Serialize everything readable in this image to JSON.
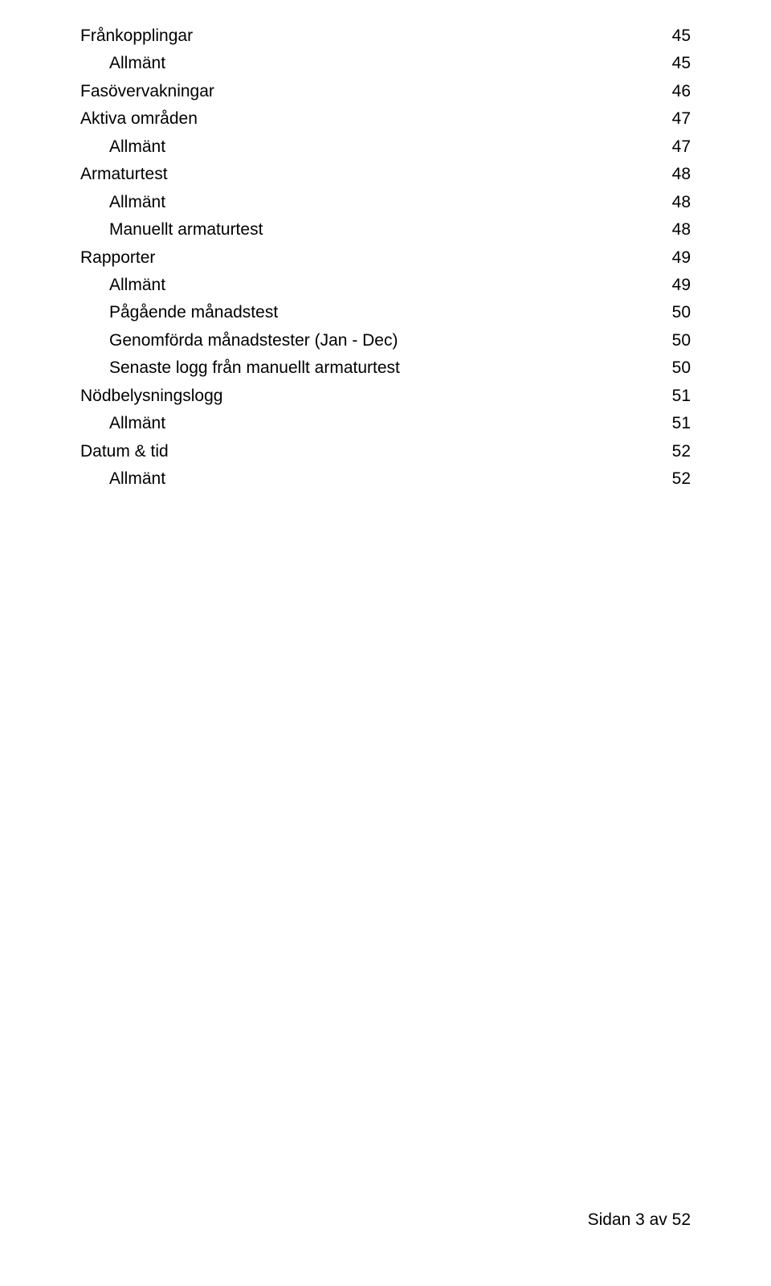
{
  "toc": [
    {
      "label": "Frånkopplingar",
      "page": "45",
      "indent": 0
    },
    {
      "label": "Allmänt",
      "page": "45",
      "indent": 1
    },
    {
      "label": "Fasövervakningar",
      "page": "46",
      "indent": 0
    },
    {
      "label": "Aktiva områden",
      "page": "47",
      "indent": 0
    },
    {
      "label": "Allmänt",
      "page": "47",
      "indent": 1
    },
    {
      "label": "Armaturtest",
      "page": "48",
      "indent": 0
    },
    {
      "label": "Allmänt",
      "page": "48",
      "indent": 1
    },
    {
      "label": "Manuellt armaturtest",
      "page": "48",
      "indent": 1
    },
    {
      "label": "Rapporter",
      "page": "49",
      "indent": 0
    },
    {
      "label": "Allmänt",
      "page": "49",
      "indent": 1
    },
    {
      "label": "Pågående månadstest",
      "page": "50",
      "indent": 1
    },
    {
      "label": "Genomförda månadstester (Jan - Dec)",
      "page": "50",
      "indent": 1
    },
    {
      "label": "Senaste logg från manuellt armaturtest",
      "page": "50",
      "indent": 1
    },
    {
      "label": "Nödbelysningslogg",
      "page": "51",
      "indent": 0
    },
    {
      "label": "Allmänt",
      "page": "51",
      "indent": 1
    },
    {
      "label": "Datum & tid",
      "page": "52",
      "indent": 0
    },
    {
      "label": "Allmänt",
      "page": "52",
      "indent": 1
    }
  ],
  "footer": "Sidan 3 av 52"
}
